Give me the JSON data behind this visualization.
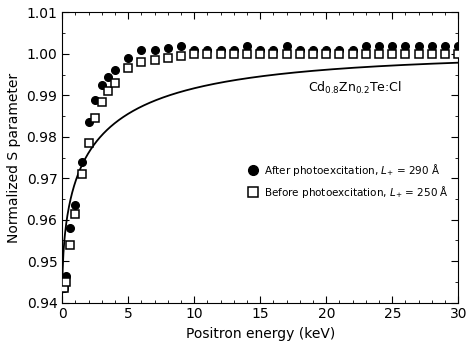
{
  "xlabel": "Positron energy (keV)",
  "ylabel": "Normalized S parameter",
  "xlim": [
    0,
    30
  ],
  "ylim": [
    0.94,
    1.01
  ],
  "yticks": [
    0.94,
    0.95,
    0.96,
    0.97,
    0.98,
    0.99,
    1.0,
    1.01
  ],
  "xticks": [
    0,
    5,
    10,
    15,
    20,
    25,
    30
  ],
  "annotation": "Cd$_{0.8}$Zn$_{0.2}$Te:Cl",
  "legend_label_after": "After photoexcitation, $L_{+}$ = 290 Å",
  "legend_label_before": "Before photoexcitation, $L_{+}$ = 250 Å",
  "dot_x": [
    0.15,
    0.3,
    0.6,
    1.0,
    1.5,
    2.0,
    2.5,
    3.0,
    3.5,
    4.0,
    5.0,
    6.0,
    7.0,
    8.0,
    9.0,
    10.0,
    11.0,
    12.0,
    13.0,
    14.0,
    15.0,
    16.0,
    17.0,
    18.0,
    19.0,
    20.0,
    21.0,
    22.0,
    23.0,
    24.0,
    25.0,
    26.0,
    27.0,
    28.0,
    29.0,
    30.0
  ],
  "dot_y": [
    0.9435,
    0.9465,
    0.958,
    0.9635,
    0.974,
    0.9835,
    0.989,
    0.9925,
    0.9945,
    0.996,
    0.999,
    1.001,
    1.001,
    1.0015,
    1.002,
    1.001,
    1.001,
    1.001,
    1.001,
    1.002,
    1.001,
    1.001,
    1.002,
    1.001,
    1.001,
    1.001,
    1.001,
    1.001,
    1.002,
    1.002,
    1.002,
    1.002,
    1.002,
    1.002,
    1.002,
    1.002
  ],
  "sq_x": [
    0.15,
    0.3,
    0.6,
    1.0,
    1.5,
    2.0,
    2.5,
    3.0,
    3.5,
    4.0,
    5.0,
    6.0,
    7.0,
    8.0,
    9.0,
    10.0,
    11.0,
    12.0,
    13.0,
    14.0,
    15.0,
    16.0,
    17.0,
    18.0,
    19.0,
    20.0,
    21.0,
    22.0,
    23.0,
    24.0,
    25.0,
    26.0,
    27.0,
    28.0,
    29.0,
    30.0
  ],
  "sq_y": [
    0.9435,
    0.945,
    0.954,
    0.9615,
    0.971,
    0.9785,
    0.9845,
    0.9885,
    0.991,
    0.993,
    0.9965,
    0.998,
    0.9985,
    0.999,
    0.9995,
    1.0,
    1.0,
    1.0,
    1.0,
    1.0,
    1.0,
    1.0,
    1.0,
    1.0,
    1.0,
    1.0,
    1.0,
    1.0,
    1.0,
    1.0,
    1.0,
    1.0,
    1.0,
    1.0,
    1.0,
    1.0
  ],
  "curve_color": "#000000",
  "bg_color": "#ffffff",
  "curve_alpha": 0.65,
  "curve_beta": 0.48,
  "S_bulk": 1.0,
  "S_surface": 0.941
}
